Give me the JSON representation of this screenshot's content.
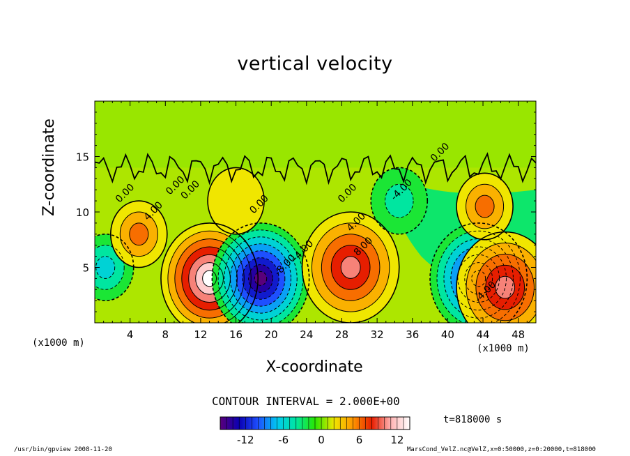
{
  "chart_data": {
    "type": "heatmap",
    "title": "vertical velocity",
    "xlabel": "X-coordinate",
    "ylabel": "Z-coordinate",
    "x_unit_left": "(x1000 m)",
    "x_unit_right": "(x1000 m)",
    "xlim": [
      0,
      50
    ],
    "ylim": [
      0,
      20
    ],
    "x_ticks": [
      4,
      8,
      12,
      16,
      20,
      24,
      28,
      32,
      36,
      40,
      44,
      48
    ],
    "y_ticks": [
      5,
      10,
      15
    ],
    "contour_interval_text": "CONTOUR INTERVAL = 2.000E+00",
    "time_text": "t=818000 s",
    "colorbar": {
      "min": -16,
      "max": 14,
      "ticks": [
        -12,
        -6,
        0,
        6,
        12
      ],
      "colors": [
        "#5a007a",
        "#0a00b4",
        "#1e50ff",
        "#00c8f0",
        "#00e6a0",
        "#28e600",
        "#f0e600",
        "#ff9600",
        "#e61e00",
        "#ffb4b4",
        "#ffffff"
      ]
    },
    "features": [
      {
        "x": 1.2,
        "z": 5.0,
        "w": -6
      },
      {
        "x": 5.0,
        "z": 8.0,
        "w": 6
      },
      {
        "x": 13.0,
        "z": 4.0,
        "w": 14
      },
      {
        "x": 18.8,
        "z": 4.0,
        "w": -16
      },
      {
        "x": 29.0,
        "z": 5.0,
        "w": 10
      },
      {
        "x": 43.5,
        "z": 4.0,
        "w": -14
      },
      {
        "x": 46.5,
        "z": 3.2,
        "w": 10
      },
      {
        "x": 44.2,
        "z": 10.5,
        "w": 6
      },
      {
        "x": 34.5,
        "z": 11.0,
        "w": -4
      },
      {
        "x": 16.0,
        "z": 11.0,
        "w": 2
      }
    ],
    "contour_labels": [
      "0.00",
      "4.00",
      "0.00",
      "0.00",
      "0.00",
      "-8.00",
      "-4.00",
      "0.00",
      "4.00",
      "8.00",
      "-4.00",
      "0.00",
      "-4.00"
    ],
    "grid": false,
    "legend": "bottom"
  },
  "footer": {
    "left": "/usr/bin/gpview   2008-11-20",
    "right": "MarsCond_VelZ.nc@VelZ,x=0:50000,z=0:20000,t=818000"
  }
}
